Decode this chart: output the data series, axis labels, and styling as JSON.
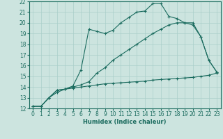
{
  "xlabel": "Humidex (Indice chaleur)",
  "xlim": [
    -0.5,
    23.5
  ],
  "ylim": [
    12,
    22
  ],
  "xticks": [
    0,
    1,
    2,
    3,
    4,
    5,
    6,
    7,
    8,
    9,
    10,
    11,
    12,
    13,
    14,
    15,
    16,
    17,
    18,
    19,
    20,
    21,
    22,
    23
  ],
  "yticks": [
    12,
    13,
    14,
    15,
    16,
    17,
    18,
    19,
    20,
    21,
    22
  ],
  "bg_color": "#cce4df",
  "line_color": "#1a6b5e",
  "grid_color": "#aacfca",
  "curve1_x": [
    0,
    1,
    2,
    3,
    4,
    5,
    6,
    7,
    8,
    9,
    10,
    11,
    12,
    13,
    14,
    15,
    16,
    17,
    18,
    19,
    20,
    21,
    22,
    23
  ],
  "curve1_y": [
    12.2,
    12.2,
    13.0,
    13.7,
    13.8,
    14.1,
    15.6,
    19.4,
    19.2,
    19.0,
    19.3,
    20.0,
    20.5,
    21.0,
    21.1,
    21.8,
    21.8,
    20.6,
    20.4,
    20.0,
    19.8,
    18.7,
    16.5,
    15.4
  ],
  "curve2_x": [
    0,
    1,
    2,
    3,
    4,
    5,
    6,
    7,
    8,
    9,
    10,
    11,
    12,
    13,
    14,
    15,
    16,
    17,
    18,
    19,
    20,
    21,
    22,
    23
  ],
  "curve2_y": [
    12.2,
    12.2,
    13.0,
    13.7,
    13.8,
    14.0,
    14.2,
    14.5,
    15.3,
    15.8,
    16.5,
    17.0,
    17.5,
    18.0,
    18.5,
    19.0,
    19.4,
    19.8,
    20.0,
    20.0,
    20.0,
    18.7,
    16.5,
    15.4
  ],
  "curve3_x": [
    0,
    1,
    2,
    3,
    4,
    5,
    6,
    7,
    8,
    9,
    10,
    11,
    12,
    13,
    14,
    15,
    16,
    17,
    18,
    19,
    20,
    21,
    22,
    23
  ],
  "curve3_y": [
    12.2,
    12.2,
    13.0,
    13.5,
    13.8,
    13.9,
    14.0,
    14.1,
    14.2,
    14.3,
    14.35,
    14.4,
    14.45,
    14.5,
    14.55,
    14.65,
    14.7,
    14.75,
    14.8,
    14.85,
    14.9,
    15.0,
    15.1,
    15.3
  ]
}
